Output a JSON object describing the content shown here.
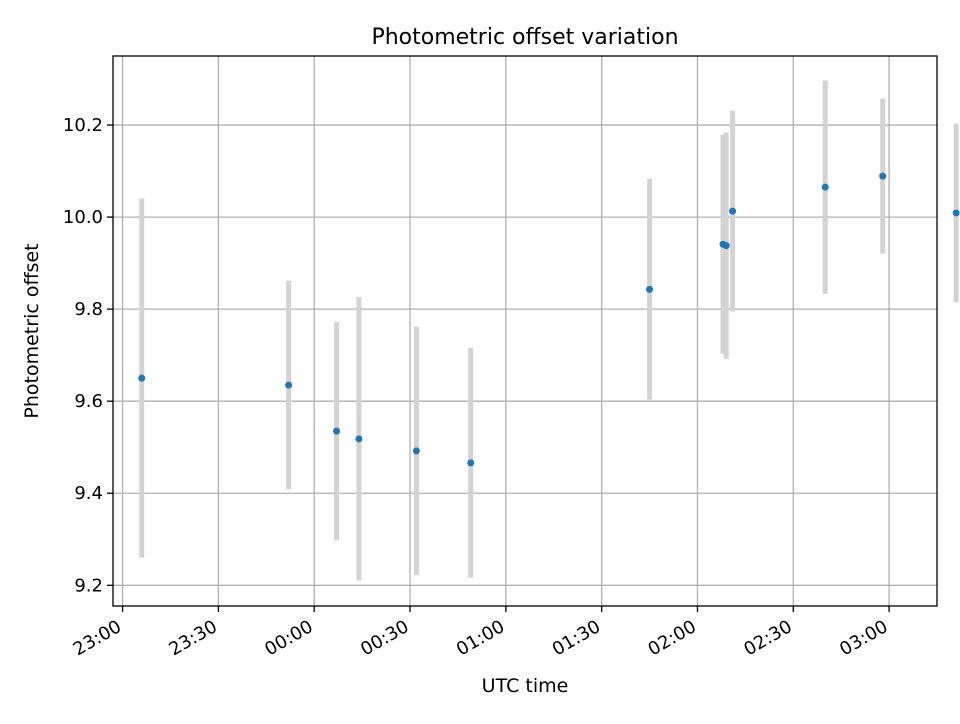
{
  "chart_data": {
    "type": "scatter",
    "title": "Photometric offset variation",
    "xlabel": "UTC time",
    "ylabel": "Photometric offset",
    "x_ticks": [
      "23:00",
      "23:30",
      "00:00",
      "00:30",
      "01:00",
      "01:30",
      "02:00",
      "02:30",
      "03:00"
    ],
    "xlim": [
      "22:57",
      "03:15"
    ],
    "ylim": [
      9.155,
      10.35
    ],
    "y_ticks": [
      9.2,
      9.4,
      9.6,
      9.8,
      10.0,
      10.2
    ],
    "y_tick_labels": [
      "9.2",
      "9.4",
      "9.6",
      "9.8",
      "10.0",
      "10.2"
    ],
    "grid": true,
    "series": [
      {
        "marker_color": "#1f77b4",
        "errorbar_color": "#d3d3d3",
        "points": [
          {
            "x": "23:06",
            "y": 9.65,
            "ymin": 9.26,
            "ymax": 10.04
          },
          {
            "x": "23:52",
            "y": 9.635,
            "ymin": 9.408,
            "ymax": 9.862
          },
          {
            "x": "00:07",
            "y": 9.535,
            "ymin": 9.298,
            "ymax": 9.772
          },
          {
            "x": "00:14",
            "y": 9.518,
            "ymin": 9.21,
            "ymax": 9.826
          },
          {
            "x": "00:32",
            "y": 9.492,
            "ymin": 9.222,
            "ymax": 9.762
          },
          {
            "x": "00:49",
            "y": 9.466,
            "ymin": 9.216,
            "ymax": 9.716
          },
          {
            "x": "01:45",
            "y": 9.843,
            "ymin": 9.603,
            "ymax": 10.083
          },
          {
            "x": "02:08",
            "y": 9.941,
            "ymin": 9.703,
            "ymax": 10.179
          },
          {
            "x": "02:09",
            "y": 9.938,
            "ymin": 9.692,
            "ymax": 10.184
          },
          {
            "x": "02:11",
            "y": 10.013,
            "ymin": 9.795,
            "ymax": 10.231
          },
          {
            "x": "02:40",
            "y": 10.065,
            "ymin": 9.833,
            "ymax": 10.297
          },
          {
            "x": "02:58",
            "y": 10.089,
            "ymin": 9.921,
            "ymax": 10.257
          },
          {
            "x": "03:21",
            "y": 10.009,
            "ymin": 9.815,
            "ymax": 10.203
          }
        ]
      }
    ]
  }
}
